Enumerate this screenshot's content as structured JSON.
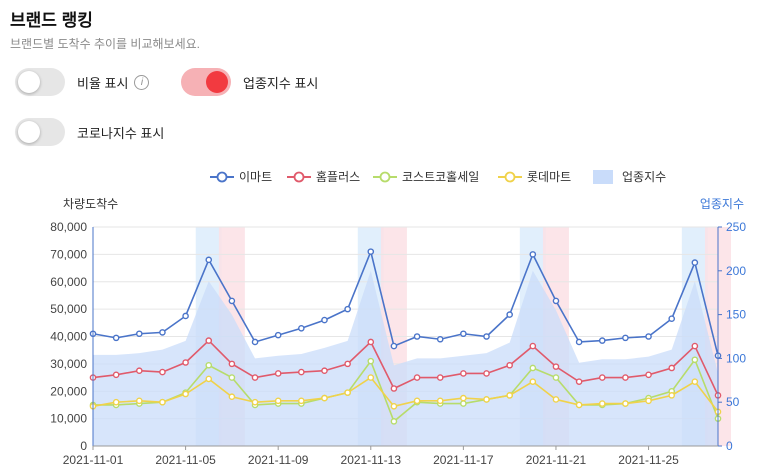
{
  "header": {
    "title": "브랜드 랭킹",
    "subtitle": "브랜드별 도착수 추이를 비교해보세요."
  },
  "toggles": [
    {
      "label": "비율 표시",
      "on": false,
      "has_info_icon": true
    },
    {
      "label": "업종지수 표시",
      "on": true,
      "has_info_icon": false
    },
    {
      "label": "코로나지수 표시",
      "on": false,
      "has_info_icon": false
    }
  ],
  "chart_data": {
    "type": "line",
    "ylabel": "차량도착수",
    "y2label": "업종지수",
    "ylim": [
      0,
      80000
    ],
    "y2lim": [
      0,
      250
    ],
    "yticks": [
      "0",
      "10,000",
      "20,000",
      "30,000",
      "40,000",
      "50,000",
      "60,000",
      "70,000",
      "80,000"
    ],
    "y2ticks": [
      "0",
      "50",
      "100",
      "150",
      "200",
      "250"
    ],
    "x": [
      "2021-11-01",
      "2021-11-02",
      "2021-11-03",
      "2021-11-04",
      "2021-11-05",
      "2021-11-06",
      "2021-11-07",
      "2021-11-08",
      "2021-11-09",
      "2021-11-10",
      "2021-11-11",
      "2021-11-12",
      "2021-11-13",
      "2021-11-14",
      "2021-11-15",
      "2021-11-16",
      "2021-11-17",
      "2021-11-18",
      "2021-11-19",
      "2021-11-20",
      "2021-11-21",
      "2021-11-22",
      "2021-11-23",
      "2021-11-24",
      "2021-11-25",
      "2021-11-26",
      "2021-11-27",
      "2021-11-28"
    ],
    "xtick_labels": [
      "2021-11-01",
      "2021-11-05",
      "2021-11-09",
      "2021-11-13",
      "2021-11-17",
      "2021-11-21",
      "2021-11-25"
    ],
    "saturday_bands": [
      "2021-11-06",
      "2021-11-13",
      "2021-11-20",
      "2021-11-27"
    ],
    "sunday_bands": [
      "2021-11-07",
      "2021-11-14",
      "2021-11-21",
      "2021-11-28"
    ],
    "series": [
      {
        "name": "이마트",
        "color": "#4a74c9",
        "axis": "left",
        "values": [
          41000,
          39500,
          41000,
          41500,
          47500,
          68000,
          53000,
          38000,
          40500,
          43000,
          46000,
          50000,
          71000,
          36500,
          40000,
          39000,
          41000,
          40000,
          48000,
          70000,
          53000,
          38000,
          38500,
          39500,
          40000,
          46500,
          67000,
          33000
        ]
      },
      {
        "name": "홈플러스",
        "color": "#e05a6b",
        "axis": "left",
        "values": [
          25000,
          26000,
          27500,
          27000,
          30500,
          38500,
          30000,
          25000,
          26500,
          27000,
          27500,
          30000,
          38000,
          21000,
          25000,
          25000,
          26500,
          26500,
          29500,
          36500,
          29000,
          23500,
          25000,
          25000,
          26000,
          28500,
          36500,
          18500
        ]
      },
      {
        "name": "코스트코홀세일",
        "color": "#b7dc6b",
        "axis": "left",
        "values": [
          15000,
          15000,
          15500,
          16000,
          19500,
          29500,
          25000,
          15000,
          15500,
          15500,
          17500,
          19500,
          31000,
          9000,
          16000,
          15500,
          15500,
          17000,
          18500,
          28500,
          25000,
          15000,
          15000,
          15500,
          17500,
          20000,
          31500,
          10000
        ]
      },
      {
        "name": "롯데마트",
        "color": "#f0d24a",
        "axis": "left",
        "values": [
          14500,
          16000,
          16500,
          16000,
          19000,
          24500,
          18000,
          16000,
          16500,
          16500,
          17500,
          19500,
          25000,
          14500,
          16500,
          16500,
          17500,
          17000,
          18500,
          23500,
          17000,
          15000,
          15500,
          15500,
          16500,
          18500,
          23500,
          12500
        ]
      },
      {
        "name": "업종지수",
        "color": "#c9dcfa",
        "axis": "right",
        "kind": "area",
        "values": [
          104,
          104,
          106,
          110,
          120,
          188,
          150,
          100,
          103,
          105,
          112,
          120,
          200,
          92,
          100,
          100,
          103,
          106,
          118,
          200,
          155,
          95,
          99,
          99,
          102,
          110,
          188,
          83
        ]
      }
    ]
  }
}
